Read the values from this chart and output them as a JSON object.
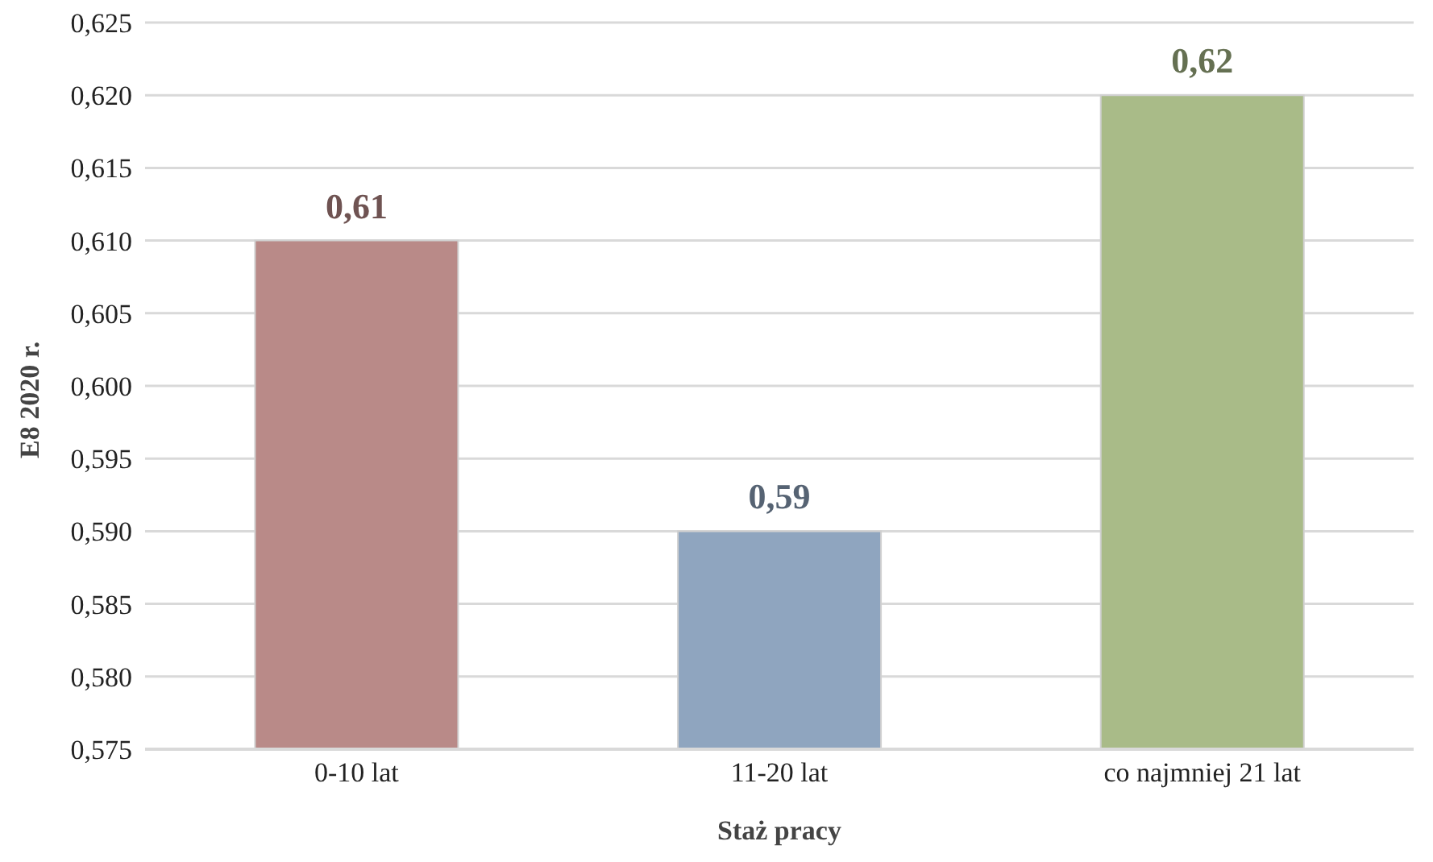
{
  "chart_data": {
    "type": "bar",
    "xlabel": "Staż pracy",
    "ylabel": "E8 2020 r.",
    "categories": [
      "0-10 lat",
      "11-20 lat",
      "co najmniej 21 lat"
    ],
    "values": [
      0.61,
      0.59,
      0.62
    ],
    "colors": [
      "#b98a88",
      "#8fa5bf",
      "#a9bb88"
    ],
    "value_labels": [
      "0,61",
      "0,59",
      "0,62"
    ],
    "ylim": [
      0.575,
      0.625
    ],
    "yticks": [
      {
        "value": 0.575,
        "label": "0,575"
      },
      {
        "value": 0.58,
        "label": "0,580"
      },
      {
        "value": 0.585,
        "label": "0,585"
      },
      {
        "value": 0.59,
        "label": "0,590"
      },
      {
        "value": 0.595,
        "label": "0,595"
      },
      {
        "value": 0.6,
        "label": "0,600"
      },
      {
        "value": 0.605,
        "label": "0,605"
      },
      {
        "value": 0.61,
        "label": "0,610"
      },
      {
        "value": 0.615,
        "label": "0,615"
      },
      {
        "value": 0.62,
        "label": "0,620"
      },
      {
        "value": 0.625,
        "label": "0,625"
      }
    ],
    "grid": "y"
  }
}
